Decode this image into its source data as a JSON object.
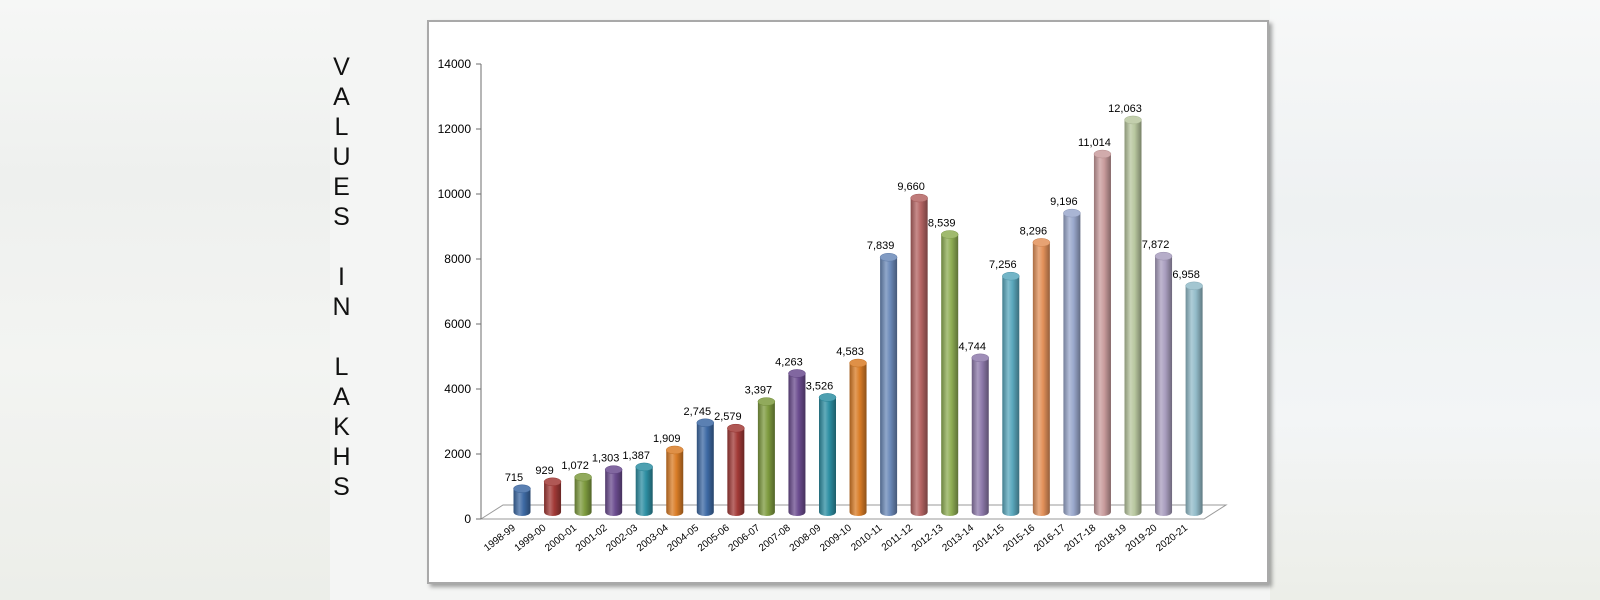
{
  "chart_data": {
    "type": "bar",
    "ylabel": "VALUES IN LAKHS",
    "ylim": [
      0,
      14000
    ],
    "yticks": [
      0,
      2000,
      4000,
      6000,
      8000,
      10000,
      12000,
      14000
    ],
    "categories": [
      "1998-99",
      "1999-00",
      "2000-01",
      "2001-02",
      "2002-03",
      "2003-04",
      "2004-05",
      "2005-06",
      "2006-07",
      "2007-08",
      "2008-09",
      "2009-10",
      "2010-11",
      "2011-12",
      "2012-13",
      "2013-14",
      "2014-15",
      "2015-16",
      "2016-17",
      "2017-18",
      "2018-19",
      "2019-20",
      "2020-21"
    ],
    "values": [
      715,
      929,
      1072,
      1303,
      1387,
      1909,
      2745,
      2579,
      3397,
      4263,
      3526,
      4583,
      7839,
      9660,
      8539,
      4744,
      7256,
      8296,
      9196,
      11014,
      12063,
      7872,
      6958
    ],
    "value_labels": [
      "715",
      "929",
      "1,072",
      "1,303",
      "1,387",
      "1,909",
      "2,745",
      "2,579",
      "3,397",
      "4,263",
      "3,526",
      "4,583",
      "7,839",
      "9,660",
      "8,539",
      "4,744",
      "7,256",
      "8,296",
      "9,196",
      "11,014",
      "12,063",
      "7,872",
      "6,958"
    ],
    "colors": [
      "#3e6aa4",
      "#a23a37",
      "#7e9b3f",
      "#6b4c8f",
      "#2e8fa3",
      "#d97c26",
      "#3e6aa4",
      "#a23a37",
      "#7e9b3f",
      "#6b4c8f",
      "#2e8fa3",
      "#d97c26",
      "#6b89b8",
      "#b46463",
      "#8fae54",
      "#8e7aab",
      "#5aa8bd",
      "#e3915a",
      "#9aa8cc",
      "#c99c9d",
      "#b8c79f",
      "#a99ebf",
      "#93bcc9"
    ],
    "style": "3d-cylinder",
    "grid": false,
    "legend": "none"
  }
}
